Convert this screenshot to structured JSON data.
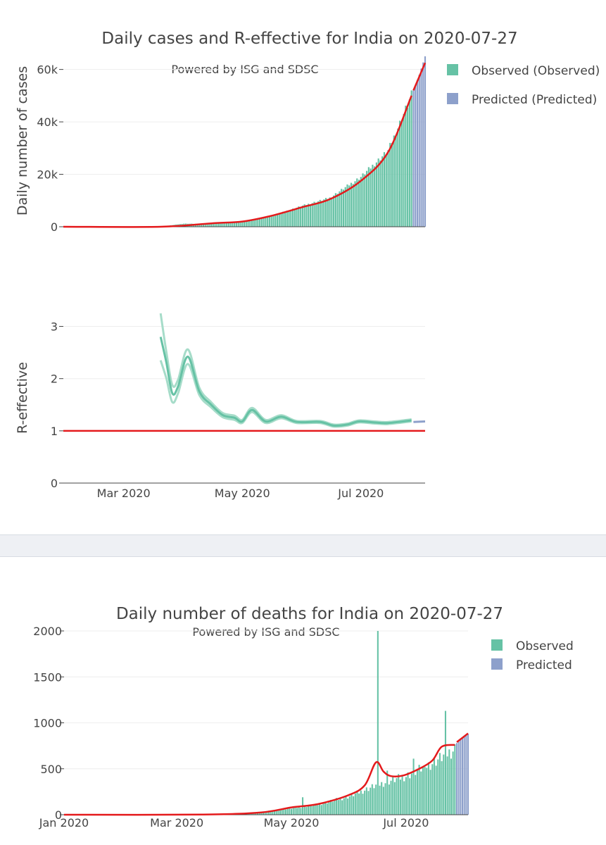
{
  "top_figure": {
    "title": "Daily cases and R-effective for India on 2020-07-27",
    "watermark": "Powered by ISG and SDSC",
    "legend": [
      "Observed (Observed)",
      "Predicted (Predicted)"
    ],
    "colors": {
      "observed": "#66c2a5",
      "predicted": "#8da0cb",
      "fit": "#e41a1c",
      "grid": "#eeeeee"
    }
  },
  "bottom_figure": {
    "title": "Daily number of deaths for India on 2020-07-27",
    "watermark": "Powered by ISG and SDSC",
    "legend": [
      "Observed",
      "Predicted"
    ]
  },
  "chart_data": [
    {
      "type": "bar",
      "name": "daily-cases",
      "title": "Daily cases and R-effective for India on 2020-07-27",
      "ylabel": "Daily number of cases",
      "xlabel": "",
      "ylim": [
        0,
        65000
      ],
      "yticks": [
        0,
        20000,
        40000,
        60000
      ],
      "ytick_labels": [
        "0",
        "20k",
        "40k",
        "60k"
      ],
      "x_start": "2020-01-30",
      "x_end": "2020-08-03",
      "observed_range": [
        "2020-03-20",
        "2020-07-27"
      ],
      "predicted_range": [
        "2020-07-28",
        "2020-08-03"
      ],
      "observed_anchors": [
        [
          "2020-03-20",
          50
        ],
        [
          "2020-04-01",
          1200
        ],
        [
          "2020-04-15",
          1000
        ],
        [
          "2020-05-01",
          2000
        ],
        [
          "2020-05-15",
          3800
        ],
        [
          "2020-06-01",
          8000
        ],
        [
          "2020-06-15",
          11000
        ],
        [
          "2020-07-01",
          19000
        ],
        [
          "2020-07-15",
          29000
        ],
        [
          "2020-07-27",
          50000
        ]
      ],
      "predicted_anchors": [
        [
          "2020-07-28",
          52000
        ],
        [
          "2020-07-31",
          58000
        ],
        [
          "2020-08-03",
          65000
        ]
      ],
      "fit_points": [
        [
          "2020-01-30",
          0
        ],
        [
          "2020-03-20",
          0
        ],
        [
          "2020-04-15",
          1300
        ],
        [
          "2020-05-01",
          2000
        ],
        [
          "2020-05-15",
          4000
        ],
        [
          "2020-06-01",
          7500
        ],
        [
          "2020-06-15",
          10500
        ],
        [
          "2020-07-01",
          17500
        ],
        [
          "2020-07-15",
          28500
        ],
        [
          "2020-07-27",
          50000
        ]
      ],
      "predicted_fit_points": [
        [
          "2020-07-28",
          52000
        ],
        [
          "2020-08-03",
          62500
        ]
      ]
    },
    {
      "type": "line",
      "name": "r-effective",
      "ylabel": "R-effective",
      "xlabel": "",
      "ylim": [
        0,
        3.2
      ],
      "yticks": [
        0,
        1,
        2,
        3
      ],
      "ytick_labels": [
        "0",
        "1",
        "2",
        "3"
      ],
      "xticks": [
        "2020-03-01",
        "2020-05-01",
        "2020-07-01"
      ],
      "xtick_labels": [
        "Mar 2020",
        "May 2020",
        "Jul 2020"
      ],
      "x_start": "2020-01-30",
      "x_end": "2020-08-03",
      "threshold": 1,
      "estimate": [
        [
          "2020-03-20",
          2.8
        ],
        [
          "2020-03-23",
          2.3
        ],
        [
          "2020-03-26",
          1.72
        ],
        [
          "2020-03-29",
          1.85
        ],
        [
          "2020-04-03",
          2.42
        ],
        [
          "2020-04-09",
          1.75
        ],
        [
          "2020-04-15",
          1.5
        ],
        [
          "2020-04-21",
          1.3
        ],
        [
          "2020-04-27",
          1.25
        ],
        [
          "2020-05-01",
          1.18
        ],
        [
          "2020-05-06",
          1.4
        ],
        [
          "2020-05-13",
          1.18
        ],
        [
          "2020-05-21",
          1.27
        ],
        [
          "2020-05-29",
          1.17
        ],
        [
          "2020-06-10",
          1.17
        ],
        [
          "2020-06-17",
          1.1
        ],
        [
          "2020-06-24",
          1.12
        ],
        [
          "2020-06-30",
          1.18
        ],
        [
          "2020-07-08",
          1.16
        ],
        [
          "2020-07-15",
          1.15
        ],
        [
          "2020-07-27",
          1.2
        ]
      ],
      "lower": [
        [
          "2020-03-20",
          2.35
        ],
        [
          "2020-03-23",
          2.0
        ],
        [
          "2020-03-26",
          1.55
        ],
        [
          "2020-03-29",
          1.72
        ],
        [
          "2020-04-03",
          2.28
        ],
        [
          "2020-04-09",
          1.68
        ],
        [
          "2020-04-15",
          1.45
        ],
        [
          "2020-04-21",
          1.26
        ],
        [
          "2020-04-27",
          1.21
        ],
        [
          "2020-05-01",
          1.15
        ],
        [
          "2020-05-06",
          1.36
        ],
        [
          "2020-05-13",
          1.15
        ],
        [
          "2020-05-21",
          1.24
        ],
        [
          "2020-05-29",
          1.15
        ],
        [
          "2020-06-10",
          1.15
        ],
        [
          "2020-06-17",
          1.08
        ],
        [
          "2020-06-24",
          1.1
        ],
        [
          "2020-06-30",
          1.16
        ],
        [
          "2020-07-08",
          1.14
        ],
        [
          "2020-07-15",
          1.13
        ],
        [
          "2020-07-27",
          1.18
        ]
      ],
      "upper": [
        [
          "2020-03-20",
          3.25
        ],
        [
          "2020-03-23",
          2.5
        ],
        [
          "2020-03-26",
          1.88
        ],
        [
          "2020-03-29",
          1.98
        ],
        [
          "2020-04-03",
          2.56
        ],
        [
          "2020-04-09",
          1.82
        ],
        [
          "2020-04-15",
          1.55
        ],
        [
          "2020-04-21",
          1.34
        ],
        [
          "2020-04-27",
          1.29
        ],
        [
          "2020-05-01",
          1.21
        ],
        [
          "2020-05-06",
          1.44
        ],
        [
          "2020-05-13",
          1.21
        ],
        [
          "2020-05-21",
          1.3
        ],
        [
          "2020-05-29",
          1.19
        ],
        [
          "2020-06-10",
          1.19
        ],
        [
          "2020-06-17",
          1.12
        ],
        [
          "2020-06-24",
          1.14
        ],
        [
          "2020-06-30",
          1.2
        ],
        [
          "2020-07-08",
          1.18
        ],
        [
          "2020-07-15",
          1.17
        ],
        [
          "2020-07-27",
          1.22
        ]
      ],
      "predicted": [
        [
          "2020-07-28",
          1.17
        ],
        [
          "2020-08-03",
          1.18
        ]
      ]
    },
    {
      "type": "bar",
      "name": "daily-deaths",
      "title": "Daily number of deaths for India on 2020-07-27",
      "ylabel": "",
      "xlabel": "",
      "ylim": [
        0,
        2000
      ],
      "yticks": [
        0,
        500,
        1000,
        1500,
        2000
      ],
      "ytick_labels": [
        "0",
        "500",
        "1000",
        "1500",
        "2000"
      ],
      "xticks": [
        "2020-01-01",
        "2020-03-01",
        "2020-05-01",
        "2020-07-01"
      ],
      "xtick_labels": [
        "Jan 2020",
        "Mar 2020",
        "May 2020",
        "Jul 2020"
      ],
      "x_start": "2020-01-01",
      "x_end": "2020-08-03",
      "observed_range": [
        "2020-03-12",
        "2020-07-27"
      ],
      "predicted_range": [
        "2020-07-28",
        "2020-08-03"
      ],
      "observed_anchors": [
        [
          "2020-03-12",
          2
        ],
        [
          "2020-04-01",
          10
        ],
        [
          "2020-04-15",
          30
        ],
        [
          "2020-05-01",
          70
        ],
        [
          "2020-05-15",
          110
        ],
        [
          "2020-06-01",
          200
        ],
        [
          "2020-06-15",
          320
        ],
        [
          "2020-07-01",
          420
        ],
        [
          "2020-07-15",
          550
        ],
        [
          "2020-07-27",
          700
        ]
      ],
      "spikes": [
        [
          "2020-05-07",
          190
        ],
        [
          "2020-06-16",
          2000
        ],
        [
          "2020-06-21",
          480
        ],
        [
          "2020-07-05",
          610
        ],
        [
          "2020-07-11",
          520
        ],
        [
          "2020-07-22",
          1130
        ]
      ],
      "predicted_anchors": [
        [
          "2020-07-28",
          780
        ],
        [
          "2020-08-03",
          880
        ]
      ],
      "fit_points": [
        [
          "2020-01-01",
          0
        ],
        [
          "2020-03-15",
          2
        ],
        [
          "2020-04-15",
          25
        ],
        [
          "2020-05-01",
          80
        ],
        [
          "2020-05-15",
          115
        ],
        [
          "2020-05-31",
          210
        ],
        [
          "2020-06-09",
          320
        ],
        [
          "2020-06-15",
          570
        ],
        [
          "2020-06-19",
          470
        ],
        [
          "2020-06-23",
          420
        ],
        [
          "2020-06-30",
          430
        ],
        [
          "2020-07-08",
          500
        ],
        [
          "2020-07-15",
          590
        ],
        [
          "2020-07-20",
          740
        ],
        [
          "2020-07-27",
          760
        ]
      ],
      "predicted_fit_points": [
        [
          "2020-07-28",
          790
        ],
        [
          "2020-08-03",
          885
        ]
      ]
    }
  ]
}
